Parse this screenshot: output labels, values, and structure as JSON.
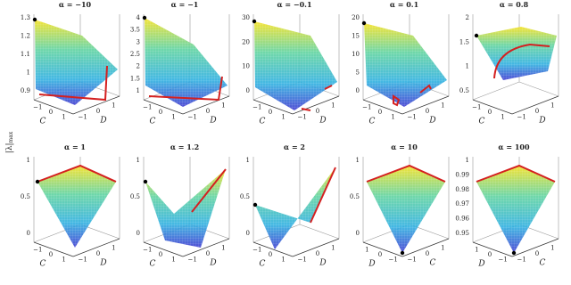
{
  "y_axis_label": {
    "text": "|λ|",
    "sub": "max"
  },
  "panels": [
    {
      "title": "α = −10",
      "zticks": [
        "1.3",
        "1.2",
        "1.1",
        "1",
        "0.9"
      ],
      "axis1": {
        "label": "C",
        "ticks": [
          "−1",
          "0",
          "1"
        ]
      },
      "axis2": {
        "label": "D",
        "ticks": [
          "−1",
          "0",
          "1"
        ]
      }
    },
    {
      "title": "α = −1",
      "zticks": [
        "4",
        "3.5",
        "3",
        "2.5",
        "2",
        "1.5",
        "1"
      ],
      "axis1": {
        "label": "C",
        "ticks": [
          "−1",
          "0",
          "1"
        ]
      },
      "axis2": {
        "label": "D",
        "ticks": [
          "−1",
          "0",
          "1"
        ]
      }
    },
    {
      "title": "α = −0.1",
      "zticks": [
        "30",
        "20",
        "10",
        "0"
      ],
      "axis1": {
        "label": "C",
        "ticks": [
          "−1",
          "0",
          "1"
        ]
      },
      "axis2": {
        "label": "D",
        "ticks": [
          "−1",
          "0",
          "1"
        ]
      }
    },
    {
      "title": "α = 0.1",
      "zticks": [
        "20",
        "15",
        "10",
        "5",
        "0"
      ],
      "axis1": {
        "label": "C",
        "ticks": [
          "−1",
          "0",
          "1"
        ]
      },
      "axis2": {
        "label": "D",
        "ticks": [
          "−1",
          "0",
          "1"
        ]
      }
    },
    {
      "title": "α = 0.8",
      "zticks": [
        "2",
        "1.5",
        "1",
        "0.5"
      ],
      "axis1": {
        "label": "C",
        "ticks": [
          "−1",
          "0",
          "1"
        ]
      },
      "axis2": {
        "label": "D",
        "ticks": [
          "−1",
          "0",
          "1"
        ]
      }
    },
    {
      "title": "α = 1",
      "zticks": [
        "1",
        "0.5",
        "0"
      ],
      "axis1": {
        "label": "C",
        "ticks": [
          "−1",
          "0",
          "1"
        ]
      },
      "axis2": {
        "label": "D",
        "ticks": [
          "−1",
          "0",
          "1"
        ]
      }
    },
    {
      "title": "α = 1.2",
      "zticks": [
        "1",
        "0.5",
        "0"
      ],
      "axis1": {
        "label": "C",
        "ticks": [
          "−1",
          "0",
          "1"
        ]
      },
      "axis2": {
        "label": "D",
        "ticks": [
          "−1",
          "0",
          "1"
        ]
      }
    },
    {
      "title": "α = 2",
      "zticks": [
        "1",
        "0.5",
        "0"
      ],
      "axis1": {
        "label": "C",
        "ticks": [
          "−1",
          "0",
          "1"
        ]
      },
      "axis2": {
        "label": "D",
        "ticks": [
          "−1",
          "0",
          "1"
        ]
      }
    },
    {
      "title": "α = 10",
      "zticks": [
        "1",
        "0.5",
        "0"
      ],
      "axis1": {
        "label": "D",
        "ticks": [
          "1",
          "0",
          "−1"
        ]
      },
      "axis2": {
        "label": "C",
        "ticks": [
          "−1",
          "0",
          "1"
        ]
      }
    },
    {
      "title": "α = 100",
      "zticks": [
        "1",
        "0.99",
        "0.98",
        "0.97",
        "0.96",
        "0.95"
      ],
      "axis1": {
        "label": "D",
        "ticks": [
          "1",
          "0",
          "−1"
        ]
      },
      "axis2": {
        "label": "C",
        "ticks": [
          "−1",
          "0",
          "1"
        ]
      }
    }
  ]
}
